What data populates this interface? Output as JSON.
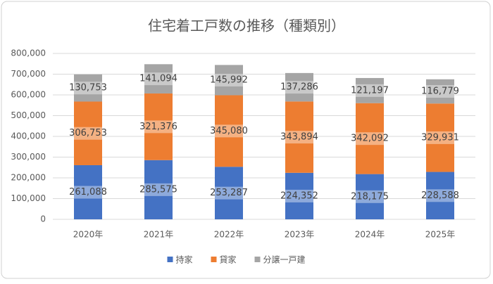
{
  "chart_data": {
    "type": "stacked-bar",
    "title": "住宅着工戸数の推移（種類別）",
    "categories": [
      "2020年",
      "2021年",
      "2022年",
      "2023年",
      "2024年",
      "2025年"
    ],
    "series": [
      {
        "name": "持家",
        "color": "#4472c4",
        "values": [
          261088,
          285575,
          253287,
          224352,
          218175,
          228588
        ],
        "value_labels": [
          "261,088",
          "285,575",
          "253,287",
          "224,352",
          "218,175",
          "228,588"
        ]
      },
      {
        "name": "貸家",
        "color": "#ed7d31",
        "values": [
          306753,
          321376,
          345080,
          343894,
          342092,
          329931
        ],
        "value_labels": [
          "306,753",
          "321,376",
          "345,080",
          "343,894",
          "342,092",
          "329,931"
        ]
      },
      {
        "name": "分譲一戸建",
        "color": "#a5a5a5",
        "values": [
          130753,
          141094,
          145992,
          137286,
          121197,
          116779
        ],
        "value_labels": [
          "130,753",
          "141,094",
          "145,992",
          "137,286",
          "121,197",
          "116,779"
        ]
      }
    ],
    "ylim": [
      0,
      800000
    ],
    "yticks": [
      {
        "value": 0,
        "label": "0"
      },
      {
        "value": 100000,
        "label": "100,000"
      },
      {
        "value": 200000,
        "label": "200,000"
      },
      {
        "value": 300000,
        "label": "300,000"
      },
      {
        "value": 400000,
        "label": "400,000"
      },
      {
        "value": 500000,
        "label": "500,000"
      },
      {
        "value": 600000,
        "label": "600,000"
      },
      {
        "value": 700000,
        "label": "700,000"
      },
      {
        "value": 800000,
        "label": "800,000"
      }
    ],
    "grid": true,
    "legend": "bottom"
  }
}
